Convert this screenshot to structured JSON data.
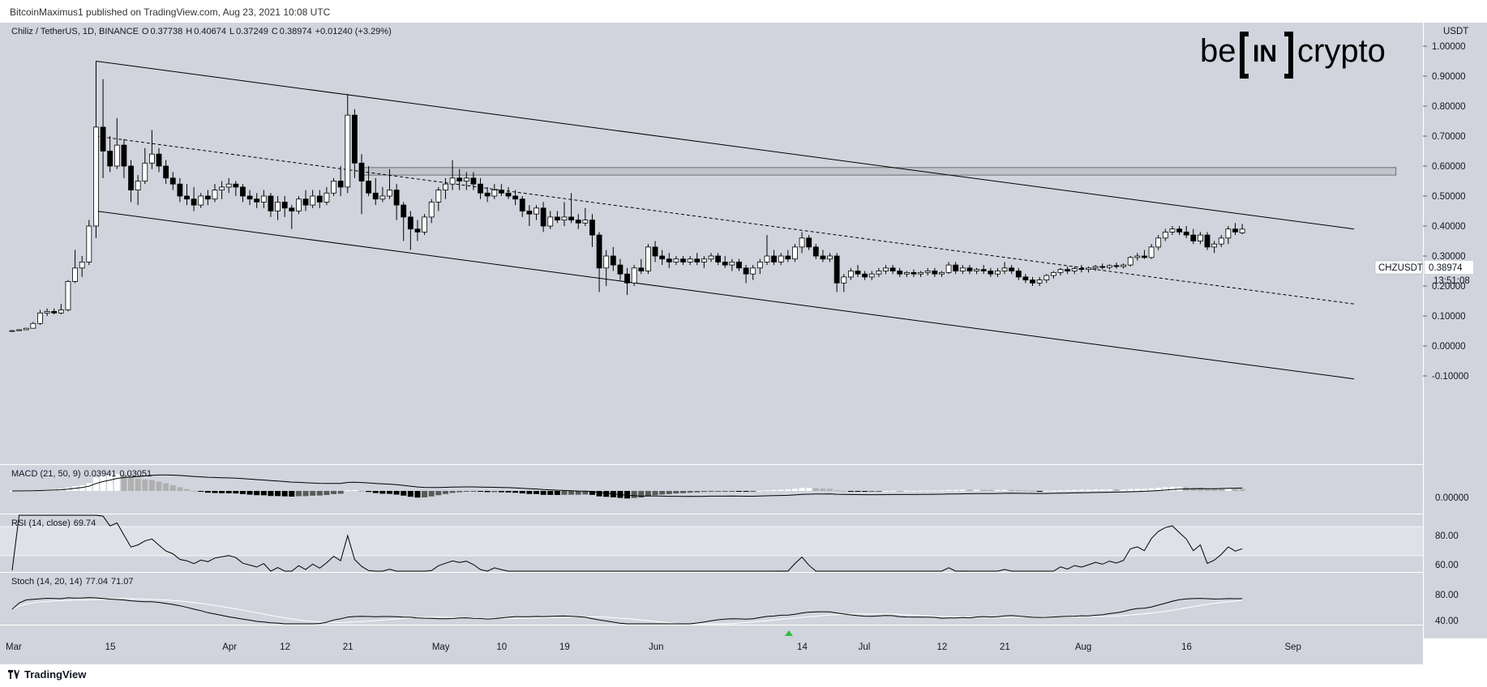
{
  "header": {
    "published": "BitcoinMaximus1 published on TradingView.com, Aug 23, 2021 10:08 UTC"
  },
  "footer": {
    "brand": "TradingView"
  },
  "logo": {
    "left": "be",
    "mid": "IN",
    "right": "crypto"
  },
  "colors": {
    "background": "#d1d4dc",
    "panel_bg": "#dadce3",
    "candle_up": "#ffffff",
    "candle_down": "#000000",
    "line": "#000000",
    "macd_hist_pos_up": "#ffffff",
    "macd_hist_pos_down": "#b0b0b0",
    "macd_hist_neg_down": "#000000",
    "macd_hist_neg_up": "#5a5a5a"
  },
  "symbol": {
    "title": "Chiliz / TetherUS, 1D, BINANCE",
    "ohlc_o_label": "O",
    "ohlc_o": "0.37738",
    "ohlc_h_label": "H",
    "ohlc_h": "0.40674",
    "ohlc_l_label": "L",
    "ohlc_l": "0.37249",
    "ohlc_c_label": "C",
    "ohlc_c": "0.38974",
    "change": "+0.01240 (+3.29%)"
  },
  "price_axis": {
    "currency": "USDT",
    "ticks": [
      "1.00000",
      "0.90000",
      "0.80000",
      "0.70000",
      "0.60000",
      "0.50000",
      "0.40000",
      "0.30000",
      "0.20000",
      "0.10000",
      "0.00000",
      "-0.10000"
    ]
  },
  "last_price": {
    "symbol": "CHZUSDT",
    "price": "0.38974",
    "countdown": "13:51:08"
  },
  "time_axis": {
    "labels": [
      "Mar",
      "15",
      "Apr",
      "12",
      "21",
      "May",
      "10",
      "19",
      "Jun",
      "14",
      "Jul",
      "12",
      "21",
      "Aug",
      "16",
      "Sep"
    ]
  },
  "macd": {
    "label": "MACD (21, 50, 9)",
    "v1": "0.03941",
    "v2": "0.03051",
    "tick": "0.00000"
  },
  "rsi": {
    "label": "RSI (14, close)",
    "value": "69.74",
    "ticks": [
      "80.00",
      "60.00"
    ]
  },
  "stoch": {
    "label": "Stoch (14, 20, 14)",
    "k": "77.04",
    "d": "71.07",
    "ticks": [
      "80.00",
      "40.00"
    ]
  },
  "chart_data": {
    "type": "candlestick",
    "title": "Chiliz / TetherUS, 1D, BINANCE",
    "x_start": "2021-03-01",
    "ylim": [
      -0.13,
      1.08
    ],
    "y_axis_scale": "linear",
    "grid": false,
    "ohlc": [
      {
        "o": 0.05,
        "h": 0.053,
        "l": 0.048,
        "c": 0.051
      },
      {
        "o": 0.051,
        "h": 0.055,
        "l": 0.05,
        "c": 0.054
      },
      {
        "o": 0.054,
        "h": 0.06,
        "l": 0.053,
        "c": 0.059
      },
      {
        "o": 0.059,
        "h": 0.08,
        "l": 0.058,
        "c": 0.075
      },
      {
        "o": 0.075,
        "h": 0.12,
        "l": 0.07,
        "c": 0.11
      },
      {
        "o": 0.11,
        "h": 0.125,
        "l": 0.1,
        "c": 0.115
      },
      {
        "o": 0.115,
        "h": 0.125,
        "l": 0.105,
        "c": 0.11
      },
      {
        "o": 0.11,
        "h": 0.14,
        "l": 0.105,
        "c": 0.12
      },
      {
        "o": 0.12,
        "h": 0.22,
        "l": 0.115,
        "c": 0.215
      },
      {
        "o": 0.215,
        "h": 0.32,
        "l": 0.21,
        "c": 0.26
      },
      {
        "o": 0.26,
        "h": 0.3,
        "l": 0.23,
        "c": 0.28
      },
      {
        "o": 0.28,
        "h": 0.42,
        "l": 0.27,
        "c": 0.4
      },
      {
        "o": 0.4,
        "h": 0.95,
        "l": 0.36,
        "c": 0.73
      },
      {
        "o": 0.73,
        "h": 0.89,
        "l": 0.56,
        "c": 0.65
      },
      {
        "o": 0.65,
        "h": 0.7,
        "l": 0.58,
        "c": 0.6
      },
      {
        "o": 0.6,
        "h": 0.76,
        "l": 0.59,
        "c": 0.67
      },
      {
        "o": 0.67,
        "h": 0.69,
        "l": 0.56,
        "c": 0.6
      },
      {
        "o": 0.6,
        "h": 0.62,
        "l": 0.48,
        "c": 0.52
      },
      {
        "o": 0.52,
        "h": 0.57,
        "l": 0.47,
        "c": 0.55
      },
      {
        "o": 0.55,
        "h": 0.66,
        "l": 0.54,
        "c": 0.61
      },
      {
        "o": 0.61,
        "h": 0.72,
        "l": 0.59,
        "c": 0.64
      },
      {
        "o": 0.64,
        "h": 0.66,
        "l": 0.58,
        "c": 0.6
      },
      {
        "o": 0.6,
        "h": 0.62,
        "l": 0.54,
        "c": 0.56
      },
      {
        "o": 0.56,
        "h": 0.58,
        "l": 0.52,
        "c": 0.54
      },
      {
        "o": 0.54,
        "h": 0.56,
        "l": 0.48,
        "c": 0.5
      },
      {
        "o": 0.5,
        "h": 0.54,
        "l": 0.47,
        "c": 0.49
      },
      {
        "o": 0.49,
        "h": 0.53,
        "l": 0.45,
        "c": 0.47
      },
      {
        "o": 0.47,
        "h": 0.51,
        "l": 0.46,
        "c": 0.5
      },
      {
        "o": 0.5,
        "h": 0.52,
        "l": 0.47,
        "c": 0.49
      },
      {
        "o": 0.49,
        "h": 0.54,
        "l": 0.48,
        "c": 0.52
      },
      {
        "o": 0.52,
        "h": 0.55,
        "l": 0.49,
        "c": 0.53
      },
      {
        "o": 0.53,
        "h": 0.56,
        "l": 0.51,
        "c": 0.54
      },
      {
        "o": 0.54,
        "h": 0.55,
        "l": 0.5,
        "c": 0.53
      },
      {
        "o": 0.53,
        "h": 0.54,
        "l": 0.48,
        "c": 0.5
      },
      {
        "o": 0.5,
        "h": 0.52,
        "l": 0.47,
        "c": 0.49
      },
      {
        "o": 0.49,
        "h": 0.51,
        "l": 0.46,
        "c": 0.48
      },
      {
        "o": 0.48,
        "h": 0.52,
        "l": 0.46,
        "c": 0.5
      },
      {
        "o": 0.5,
        "h": 0.51,
        "l": 0.43,
        "c": 0.45
      },
      {
        "o": 0.45,
        "h": 0.5,
        "l": 0.42,
        "c": 0.48
      },
      {
        "o": 0.48,
        "h": 0.5,
        "l": 0.43,
        "c": 0.46
      },
      {
        "o": 0.46,
        "h": 0.47,
        "l": 0.39,
        "c": 0.45
      },
      {
        "o": 0.45,
        "h": 0.5,
        "l": 0.44,
        "c": 0.49
      },
      {
        "o": 0.49,
        "h": 0.52,
        "l": 0.45,
        "c": 0.47
      },
      {
        "o": 0.47,
        "h": 0.52,
        "l": 0.46,
        "c": 0.5
      },
      {
        "o": 0.5,
        "h": 0.52,
        "l": 0.46,
        "c": 0.48
      },
      {
        "o": 0.48,
        "h": 0.53,
        "l": 0.47,
        "c": 0.51
      },
      {
        "o": 0.51,
        "h": 0.56,
        "l": 0.5,
        "c": 0.55
      },
      {
        "o": 0.55,
        "h": 0.6,
        "l": 0.5,
        "c": 0.53
      },
      {
        "o": 0.53,
        "h": 0.84,
        "l": 0.51,
        "c": 0.77
      },
      {
        "o": 0.77,
        "h": 0.79,
        "l": 0.56,
        "c": 0.61
      },
      {
        "o": 0.61,
        "h": 0.64,
        "l": 0.44,
        "c": 0.55
      },
      {
        "o": 0.55,
        "h": 0.6,
        "l": 0.5,
        "c": 0.51
      },
      {
        "o": 0.51,
        "h": 0.56,
        "l": 0.47,
        "c": 0.49
      },
      {
        "o": 0.49,
        "h": 0.53,
        "l": 0.48,
        "c": 0.5
      },
      {
        "o": 0.5,
        "h": 0.59,
        "l": 0.49,
        "c": 0.52
      },
      {
        "o": 0.52,
        "h": 0.54,
        "l": 0.42,
        "c": 0.47
      },
      {
        "o": 0.47,
        "h": 0.48,
        "l": 0.35,
        "c": 0.43
      },
      {
        "o": 0.43,
        "h": 0.45,
        "l": 0.32,
        "c": 0.39
      },
      {
        "o": 0.39,
        "h": 0.42,
        "l": 0.35,
        "c": 0.38
      },
      {
        "o": 0.38,
        "h": 0.44,
        "l": 0.37,
        "c": 0.43
      },
      {
        "o": 0.43,
        "h": 0.49,
        "l": 0.41,
        "c": 0.48
      },
      {
        "o": 0.48,
        "h": 0.53,
        "l": 0.45,
        "c": 0.52
      },
      {
        "o": 0.52,
        "h": 0.56,
        "l": 0.49,
        "c": 0.54
      },
      {
        "o": 0.54,
        "h": 0.62,
        "l": 0.52,
        "c": 0.56
      },
      {
        "o": 0.56,
        "h": 0.59,
        "l": 0.52,
        "c": 0.55
      },
      {
        "o": 0.55,
        "h": 0.58,
        "l": 0.52,
        "c": 0.56
      },
      {
        "o": 0.56,
        "h": 0.58,
        "l": 0.52,
        "c": 0.54
      },
      {
        "o": 0.54,
        "h": 0.56,
        "l": 0.49,
        "c": 0.51
      },
      {
        "o": 0.51,
        "h": 0.53,
        "l": 0.48,
        "c": 0.5
      },
      {
        "o": 0.5,
        "h": 0.54,
        "l": 0.49,
        "c": 0.52
      },
      {
        "o": 0.52,
        "h": 0.54,
        "l": 0.5,
        "c": 0.51
      },
      {
        "o": 0.51,
        "h": 0.53,
        "l": 0.49,
        "c": 0.5
      },
      {
        "o": 0.5,
        "h": 0.52,
        "l": 0.47,
        "c": 0.49
      },
      {
        "o": 0.49,
        "h": 0.5,
        "l": 0.43,
        "c": 0.45
      },
      {
        "o": 0.45,
        "h": 0.47,
        "l": 0.4,
        "c": 0.44
      },
      {
        "o": 0.44,
        "h": 0.47,
        "l": 0.42,
        "c": 0.46
      },
      {
        "o": 0.46,
        "h": 0.48,
        "l": 0.38,
        "c": 0.4
      },
      {
        "o": 0.4,
        "h": 0.45,
        "l": 0.39,
        "c": 0.43
      },
      {
        "o": 0.43,
        "h": 0.45,
        "l": 0.41,
        "c": 0.42
      },
      {
        "o": 0.42,
        "h": 0.48,
        "l": 0.4,
        "c": 0.43
      },
      {
        "o": 0.43,
        "h": 0.51,
        "l": 0.41,
        "c": 0.42
      },
      {
        "o": 0.42,
        "h": 0.44,
        "l": 0.39,
        "c": 0.41
      },
      {
        "o": 0.41,
        "h": 0.46,
        "l": 0.4,
        "c": 0.42
      },
      {
        "o": 0.42,
        "h": 0.44,
        "l": 0.33,
        "c": 0.37
      },
      {
        "o": 0.37,
        "h": 0.38,
        "l": 0.18,
        "c": 0.26
      },
      {
        "o": 0.26,
        "h": 0.32,
        "l": 0.2,
        "c": 0.3
      },
      {
        "o": 0.3,
        "h": 0.33,
        "l": 0.25,
        "c": 0.27
      },
      {
        "o": 0.27,
        "h": 0.29,
        "l": 0.22,
        "c": 0.24
      },
      {
        "o": 0.24,
        "h": 0.26,
        "l": 0.17,
        "c": 0.21
      },
      {
        "o": 0.21,
        "h": 0.27,
        "l": 0.2,
        "c": 0.26
      },
      {
        "o": 0.26,
        "h": 0.29,
        "l": 0.24,
        "c": 0.25
      },
      {
        "o": 0.25,
        "h": 0.34,
        "l": 0.24,
        "c": 0.33
      },
      {
        "o": 0.33,
        "h": 0.35,
        "l": 0.28,
        "c": 0.3
      },
      {
        "o": 0.3,
        "h": 0.32,
        "l": 0.27,
        "c": 0.29
      },
      {
        "o": 0.29,
        "h": 0.31,
        "l": 0.26,
        "c": 0.28
      },
      {
        "o": 0.28,
        "h": 0.3,
        "l": 0.27,
        "c": 0.29
      },
      {
        "o": 0.29,
        "h": 0.3,
        "l": 0.27,
        "c": 0.28
      },
      {
        "o": 0.28,
        "h": 0.3,
        "l": 0.27,
        "c": 0.29
      },
      {
        "o": 0.29,
        "h": 0.31,
        "l": 0.27,
        "c": 0.28
      },
      {
        "o": 0.28,
        "h": 0.3,
        "l": 0.26,
        "c": 0.29
      },
      {
        "o": 0.29,
        "h": 0.31,
        "l": 0.28,
        "c": 0.3
      },
      {
        "o": 0.3,
        "h": 0.31,
        "l": 0.27,
        "c": 0.28
      },
      {
        "o": 0.28,
        "h": 0.3,
        "l": 0.26,
        "c": 0.27
      },
      {
        "o": 0.27,
        "h": 0.29,
        "l": 0.25,
        "c": 0.28
      },
      {
        "o": 0.28,
        "h": 0.29,
        "l": 0.25,
        "c": 0.26
      },
      {
        "o": 0.26,
        "h": 0.27,
        "l": 0.21,
        "c": 0.24
      },
      {
        "o": 0.24,
        "h": 0.27,
        "l": 0.22,
        "c": 0.26
      },
      {
        "o": 0.26,
        "h": 0.29,
        "l": 0.24,
        "c": 0.28
      },
      {
        "o": 0.28,
        "h": 0.37,
        "l": 0.27,
        "c": 0.3
      },
      {
        "o": 0.3,
        "h": 0.32,
        "l": 0.27,
        "c": 0.28
      },
      {
        "o": 0.28,
        "h": 0.31,
        "l": 0.27,
        "c": 0.3
      },
      {
        "o": 0.3,
        "h": 0.32,
        "l": 0.28,
        "c": 0.29
      },
      {
        "o": 0.29,
        "h": 0.34,
        "l": 0.28,
        "c": 0.33
      },
      {
        "o": 0.33,
        "h": 0.38,
        "l": 0.31,
        "c": 0.36
      },
      {
        "o": 0.36,
        "h": 0.37,
        "l": 0.32,
        "c": 0.33
      },
      {
        "o": 0.33,
        "h": 0.34,
        "l": 0.29,
        "c": 0.3
      },
      {
        "o": 0.3,
        "h": 0.32,
        "l": 0.28,
        "c": 0.29
      },
      {
        "o": 0.29,
        "h": 0.31,
        "l": 0.28,
        "c": 0.3
      },
      {
        "o": 0.3,
        "h": 0.31,
        "l": 0.18,
        "c": 0.21
      },
      {
        "o": 0.21,
        "h": 0.24,
        "l": 0.18,
        "c": 0.23
      },
      {
        "o": 0.23,
        "h": 0.26,
        "l": 0.22,
        "c": 0.25
      },
      {
        "o": 0.25,
        "h": 0.27,
        "l": 0.23,
        "c": 0.24
      },
      {
        "o": 0.24,
        "h": 0.25,
        "l": 0.22,
        "c": 0.23
      },
      {
        "o": 0.23,
        "h": 0.25,
        "l": 0.22,
        "c": 0.24
      },
      {
        "o": 0.24,
        "h": 0.26,
        "l": 0.23,
        "c": 0.25
      },
      {
        "o": 0.25,
        "h": 0.27,
        "l": 0.24,
        "c": 0.26
      },
      {
        "o": 0.26,
        "h": 0.27,
        "l": 0.24,
        "c": 0.25
      },
      {
        "o": 0.25,
        "h": 0.26,
        "l": 0.23,
        "c": 0.24
      },
      {
        "o": 0.24,
        "h": 0.25,
        "l": 0.23,
        "c": 0.245
      },
      {
        "o": 0.245,
        "h": 0.255,
        "l": 0.23,
        "c": 0.24
      },
      {
        "o": 0.24,
        "h": 0.25,
        "l": 0.23,
        "c": 0.245
      },
      {
        "o": 0.245,
        "h": 0.26,
        "l": 0.235,
        "c": 0.25
      },
      {
        "o": 0.25,
        "h": 0.26,
        "l": 0.23,
        "c": 0.24
      },
      {
        "o": 0.24,
        "h": 0.25,
        "l": 0.23,
        "c": 0.245
      },
      {
        "o": 0.245,
        "h": 0.28,
        "l": 0.24,
        "c": 0.27
      },
      {
        "o": 0.27,
        "h": 0.28,
        "l": 0.24,
        "c": 0.25
      },
      {
        "o": 0.25,
        "h": 0.27,
        "l": 0.24,
        "c": 0.26
      },
      {
        "o": 0.26,
        "h": 0.27,
        "l": 0.24,
        "c": 0.25
      },
      {
        "o": 0.25,
        "h": 0.26,
        "l": 0.24,
        "c": 0.255
      },
      {
        "o": 0.255,
        "h": 0.27,
        "l": 0.24,
        "c": 0.25
      },
      {
        "o": 0.25,
        "h": 0.26,
        "l": 0.23,
        "c": 0.24
      },
      {
        "o": 0.24,
        "h": 0.26,
        "l": 0.23,
        "c": 0.25
      },
      {
        "o": 0.25,
        "h": 0.28,
        "l": 0.24,
        "c": 0.26
      },
      {
        "o": 0.26,
        "h": 0.27,
        "l": 0.24,
        "c": 0.25
      },
      {
        "o": 0.25,
        "h": 0.26,
        "l": 0.22,
        "c": 0.23
      },
      {
        "o": 0.23,
        "h": 0.24,
        "l": 0.21,
        "c": 0.22
      },
      {
        "o": 0.22,
        "h": 0.23,
        "l": 0.2,
        "c": 0.21
      },
      {
        "o": 0.21,
        "h": 0.23,
        "l": 0.2,
        "c": 0.22
      },
      {
        "o": 0.22,
        "h": 0.24,
        "l": 0.21,
        "c": 0.235
      },
      {
        "o": 0.235,
        "h": 0.25,
        "l": 0.225,
        "c": 0.245
      },
      {
        "o": 0.245,
        "h": 0.26,
        "l": 0.235,
        "c": 0.255
      },
      {
        "o": 0.255,
        "h": 0.265,
        "l": 0.24,
        "c": 0.25
      },
      {
        "o": 0.25,
        "h": 0.265,
        "l": 0.24,
        "c": 0.258
      },
      {
        "o": 0.258,
        "h": 0.27,
        "l": 0.245,
        "c": 0.255
      },
      {
        "o": 0.255,
        "h": 0.265,
        "l": 0.245,
        "c": 0.26
      },
      {
        "o": 0.26,
        "h": 0.27,
        "l": 0.25,
        "c": 0.265
      },
      {
        "o": 0.265,
        "h": 0.275,
        "l": 0.255,
        "c": 0.262
      },
      {
        "o": 0.262,
        "h": 0.272,
        "l": 0.255,
        "c": 0.268
      },
      {
        "o": 0.268,
        "h": 0.278,
        "l": 0.258,
        "c": 0.265
      },
      {
        "o": 0.265,
        "h": 0.275,
        "l": 0.258,
        "c": 0.27
      },
      {
        "o": 0.27,
        "h": 0.3,
        "l": 0.265,
        "c": 0.295
      },
      {
        "o": 0.295,
        "h": 0.31,
        "l": 0.285,
        "c": 0.3
      },
      {
        "o": 0.3,
        "h": 0.32,
        "l": 0.29,
        "c": 0.295
      },
      {
        "o": 0.295,
        "h": 0.34,
        "l": 0.29,
        "c": 0.33
      },
      {
        "o": 0.33,
        "h": 0.37,
        "l": 0.32,
        "c": 0.36
      },
      {
        "o": 0.36,
        "h": 0.39,
        "l": 0.35,
        "c": 0.38
      },
      {
        "o": 0.38,
        "h": 0.4,
        "l": 0.37,
        "c": 0.39
      },
      {
        "o": 0.39,
        "h": 0.4,
        "l": 0.37,
        "c": 0.38
      },
      {
        "o": 0.38,
        "h": 0.4,
        "l": 0.36,
        "c": 0.37
      },
      {
        "o": 0.37,
        "h": 0.39,
        "l": 0.34,
        "c": 0.35
      },
      {
        "o": 0.35,
        "h": 0.38,
        "l": 0.34,
        "c": 0.37
      },
      {
        "o": 0.37,
        "h": 0.38,
        "l": 0.32,
        "c": 0.33
      },
      {
        "o": 0.33,
        "h": 0.35,
        "l": 0.31,
        "c": 0.34
      },
      {
        "o": 0.34,
        "h": 0.37,
        "l": 0.33,
        "c": 0.36
      },
      {
        "o": 0.36,
        "h": 0.4,
        "l": 0.34,
        "c": 0.39
      },
      {
        "o": 0.39,
        "h": 0.41,
        "l": 0.37,
        "c": 0.38
      },
      {
        "o": 0.37738,
        "h": 0.40674,
        "l": 0.37249,
        "c": 0.38974
      }
    ],
    "trendlines": [
      {
        "name": "channel-upper",
        "x1": 12,
        "y1": 0.95,
        "x2": 192,
        "y2": 0.39
      },
      {
        "name": "channel-lower",
        "x1": 12,
        "y1": 0.45,
        "x2": 192,
        "y2": -0.11
      },
      {
        "name": "channel-mid-dashed",
        "x1": 12,
        "y1": 0.7,
        "x2": 192,
        "y2": 0.14
      }
    ],
    "resistance_zone": {
      "y_low": 0.57,
      "y_high": 0.595,
      "x_start": 50,
      "x_end": 198
    }
  }
}
